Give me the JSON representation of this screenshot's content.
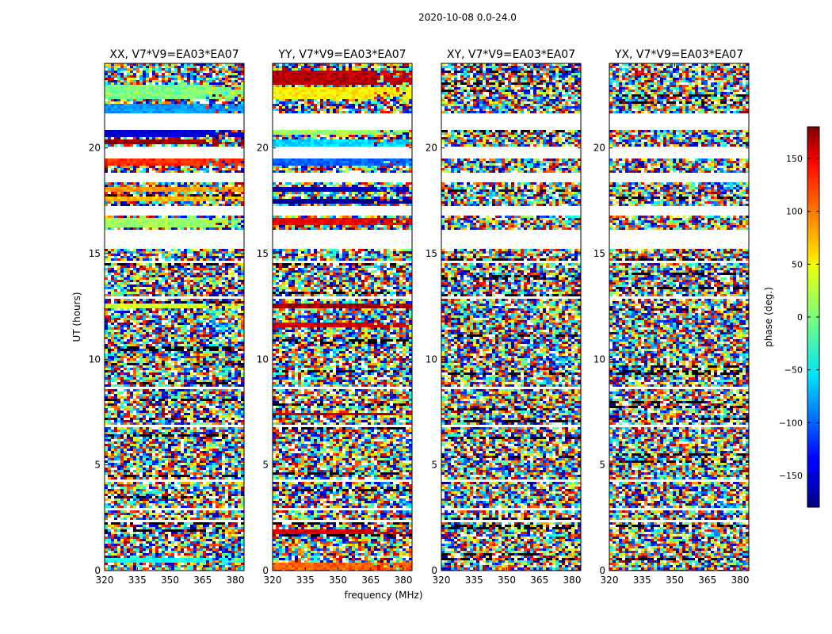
{
  "chart_data": {
    "type": "heatmap",
    "suptitle": "2020-10-08 0.0-24.0",
    "xlabel": "frequency (MHz)",
    "ylabel": "UT (hours)",
    "colorbar_label": "phase (deg.)",
    "xlim": [
      320,
      384
    ],
    "ylim": [
      0,
      24
    ],
    "clim": [
      -180,
      180
    ],
    "colormap": "jet",
    "x_ticks": [
      320,
      335,
      350,
      365,
      380
    ],
    "y_ticks": [
      0,
      5,
      10,
      15,
      20
    ],
    "colorbar_ticks": [
      -150,
      -100,
      -50,
      0,
      50,
      100,
      150
    ],
    "panels": [
      {
        "title": "XX, V7*V9=EA03*EA07",
        "bands": [
          {
            "y": [
              22.3,
              23.0
            ],
            "phase": 0
          },
          {
            "y": [
              21.6,
              22.1
            ],
            "phase": -80
          },
          {
            "y": [
              20.5,
              20.85
            ],
            "phase": -150
          },
          {
            "y": [
              20.15,
              20.35
            ],
            "phase": 170
          },
          {
            "y": [
              19.15,
              19.45
            ],
            "phase": 120
          },
          {
            "y": [
              17.95,
              18.15
            ],
            "phase": 80
          },
          {
            "y": [
              17.45,
              17.65
            ],
            "phase": 70
          },
          {
            "y": [
              16.2,
              16.65
            ],
            "phase": 10
          },
          {
            "y": [
              12.4,
              12.65
            ],
            "phase": 30
          },
          {
            "y": [
              0.4,
              0.6
            ],
            "phase": -40
          }
        ]
      },
      {
        "title": "YY, V7*V9=EA03*EA07",
        "bands": [
          {
            "y": [
              23.0,
              23.7
            ],
            "phase": 160
          },
          {
            "y": [
              22.3,
              22.9
            ],
            "phase": 50
          },
          {
            "y": [
              20.6,
              20.8
            ],
            "phase": 10
          },
          {
            "y": [
              20.1,
              20.35
            ],
            "phase": -60
          },
          {
            "y": [
              19.2,
              19.45
            ],
            "phase": -100
          },
          {
            "y": [
              17.95,
              18.15
            ],
            "phase": -160
          },
          {
            "y": [
              17.4,
              17.6
            ],
            "phase": -170
          },
          {
            "y": [
              16.3,
              16.65
            ],
            "phase": 140
          },
          {
            "y": [
              12.4,
              12.65
            ],
            "phase": 170
          },
          {
            "y": [
              11.5,
              11.7
            ],
            "phase": 150
          },
          {
            "y": [
              7.3,
              7.5
            ],
            "phase": 160
          },
          {
            "y": [
              1.7,
              1.9
            ],
            "phase": 150
          },
          {
            "y": [
              0.05,
              0.35
            ],
            "phase": 100
          }
        ]
      },
      {
        "title": "XY, V7*V9=EA03*EA07",
        "bands": []
      },
      {
        "title": "YX, V7*V9=EA03*EA07",
        "bands": []
      }
    ],
    "blank_rows": [
      [
        21.1,
        21.6
      ],
      [
        20.9,
        21.05
      ],
      [
        19.5,
        20.05
      ],
      [
        18.4,
        18.8
      ],
      [
        16.8,
        17.3
      ],
      [
        15.25,
        16.1
      ],
      [
        14.6,
        14.7
      ],
      [
        12.9,
        13.0
      ],
      [
        11.8,
        11.9
      ],
      [
        8.6,
        8.7
      ],
      [
        6.8,
        6.9
      ],
      [
        4.2,
        4.3
      ],
      [
        2.9,
        3.0
      ],
      [
        2.25,
        2.35
      ],
      [
        1.0,
        1.1
      ]
    ]
  }
}
